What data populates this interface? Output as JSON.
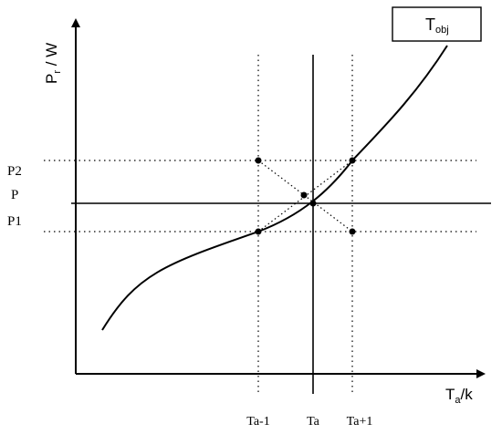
{
  "chart_data": {
    "type": "line",
    "legend_label_main": "T",
    "legend_label_sub": "obj",
    "legend_position": "top-right",
    "y_axis_label_main": "P",
    "y_axis_label_sub": "r",
    "y_axis_label_unit": " / W",
    "x_axis_label_main": "T",
    "x_axis_label_sub": "a",
    "x_axis_label_unit": "/k",
    "y_tick_labels": {
      "p2": "P2",
      "p": "P",
      "p1": "P1"
    },
    "x_tick_labels": {
      "ta_minus_1": "Ta-1",
      "ta": "Ta",
      "ta_plus_1": "Ta+1"
    },
    "curve_color": "#000000"
  }
}
